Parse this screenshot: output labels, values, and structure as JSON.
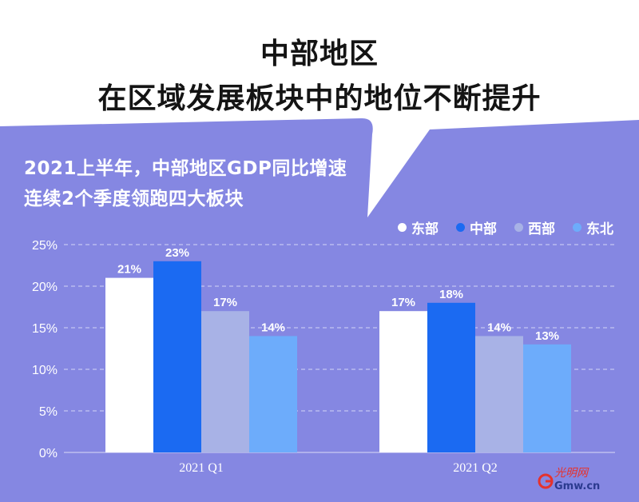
{
  "headline": {
    "line1": "中部地区",
    "line2": "在区域发展板块中的地位不断提升"
  },
  "subtitle": {
    "line1": "2021上半年，中部地区GDP同比增速",
    "line2": "连续2个季度领跑四大板块"
  },
  "colors": {
    "panel": "#8587E2",
    "header_bg": "#ffffff",
    "text_dark": "#141414",
    "东部": "#FFFFFF",
    "中部": "#1B6AF2",
    "西部": "#A8B2E6",
    "东北": "#6DACFB"
  },
  "watermark": {
    "text": "Gmw.cn",
    "glyphs": "光明网"
  },
  "chart_data": {
    "type": "bar",
    "categories": [
      "2021 Q1",
      "2021 Q2"
    ],
    "series": [
      {
        "name": "东部",
        "values": [
          21,
          17
        ],
        "labels": [
          "21%",
          "17%"
        ],
        "color": "#FFFFFF"
      },
      {
        "name": "中部",
        "values": [
          23,
          18
        ],
        "labels": [
          "23%",
          "18%"
        ],
        "color": "#1B6AF2"
      },
      {
        "name": "西部",
        "values": [
          17,
          14
        ],
        "labels": [
          "17%",
          "14%"
        ],
        "color": "#A8B2E6"
      },
      {
        "name": "东北",
        "values": [
          14,
          13
        ],
        "labels": [
          "14%",
          "13%"
        ],
        "color": "#6DACFB"
      }
    ],
    "ylim": [
      0,
      25
    ],
    "yticks": [
      0,
      5,
      10,
      15,
      20,
      25
    ],
    "ytick_labels": [
      "0%",
      "5%",
      "10%",
      "15%",
      "20%",
      "25%"
    ],
    "grid": true,
    "legend": "top-right",
    "xlabel": "",
    "ylabel": ""
  }
}
